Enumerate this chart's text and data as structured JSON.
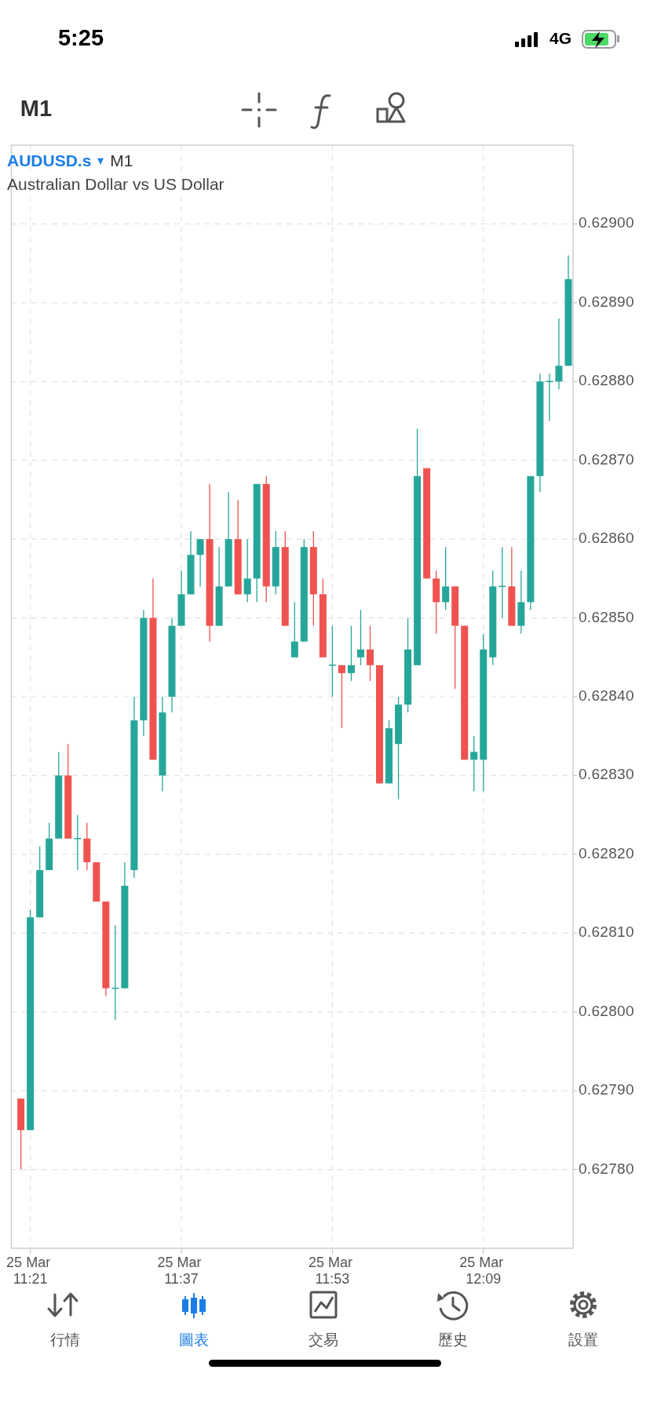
{
  "chart_data": {
    "type": "candlestick",
    "title": "AUDUSD.s",
    "subtitle": "Australian Dollar vs US Dollar",
    "annotations": [
      "5:25",
      "4G",
      "M1",
      "▾",
      "M1",
      "行情",
      "圖表",
      "交易",
      "歷史",
      "設置"
    ],
    "categories": [
      null,
      "25 Mar 11:21",
      null,
      null,
      null,
      null,
      null,
      null,
      null,
      null,
      null,
      null,
      null,
      null,
      null,
      null,
      null,
      "25 Mar 11:37",
      null,
      null,
      null,
      null,
      null,
      null,
      null,
      null,
      null,
      null,
      null,
      null,
      null,
      null,
      null,
      "25 Mar 11:53",
      null,
      null,
      null,
      null,
      null,
      null,
      null,
      null,
      null,
      null,
      null,
      null,
      null,
      null,
      null,
      "25 Mar 12:09",
      null,
      null,
      null,
      null,
      null,
      null,
      null,
      null,
      null
    ],
    "ohlc": [
      [
        0.62789,
        0.62789,
        0.6278,
        0.62785
      ],
      [
        0.62785,
        0.62813,
        0.62785,
        0.62812
      ],
      [
        0.62812,
        0.62821,
        0.62812,
        0.62818
      ],
      [
        0.62818,
        0.62824,
        0.62818,
        0.62822
      ],
      [
        0.62822,
        0.62833,
        0.62822,
        0.6283
      ],
      [
        0.6283,
        0.62834,
        0.62822,
        0.62822
      ],
      [
        0.62822,
        0.62825,
        0.62818,
        0.62822
      ],
      [
        0.62822,
        0.62824,
        0.62818,
        0.62819
      ],
      [
        0.62819,
        0.62819,
        0.62814,
        0.62814
      ],
      [
        0.62814,
        0.62814,
        0.62802,
        0.62803
      ],
      [
        0.62803,
        0.62811,
        0.62799,
        0.62803
      ],
      [
        0.62803,
        0.62819,
        0.62803,
        0.62816
      ],
      [
        0.62818,
        0.6284,
        0.62817,
        0.62837
      ],
      [
        0.62837,
        0.62851,
        0.62835,
        0.6285
      ],
      [
        0.6285,
        0.62855,
        0.62832,
        0.62832
      ],
      [
        0.6283,
        0.6284,
        0.62828,
        0.62838
      ],
      [
        0.6284,
        0.6285,
        0.62838,
        0.62849
      ],
      [
        0.62849,
        0.62856,
        0.62849,
        0.62853
      ],
      [
        0.62853,
        0.62861,
        0.62853,
        0.62858
      ],
      [
        0.62858,
        0.6286,
        0.62854,
        0.6286
      ],
      [
        0.6286,
        0.62867,
        0.62847,
        0.62849
      ],
      [
        0.62849,
        0.62859,
        0.62849,
        0.62854
      ],
      [
        0.62854,
        0.62866,
        0.62854,
        0.6286
      ],
      [
        0.6286,
        0.62865,
        0.62853,
        0.62853
      ],
      [
        0.62853,
        0.6286,
        0.62852,
        0.62855
      ],
      [
        0.62855,
        0.62867,
        0.62852,
        0.62867
      ],
      [
        0.62867,
        0.62868,
        0.62852,
        0.62854
      ],
      [
        0.62854,
        0.62861,
        0.62853,
        0.62859
      ],
      [
        0.62859,
        0.62861,
        0.62849,
        0.62849
      ],
      [
        0.62845,
        0.62852,
        0.62845,
        0.62847
      ],
      [
        0.62847,
        0.6286,
        0.62847,
        0.62859
      ],
      [
        0.62859,
        0.62861,
        0.62849,
        0.62853
      ],
      [
        0.62853,
        0.62855,
        0.62845,
        0.62845
      ],
      [
        0.62844,
        0.62849,
        0.6284,
        0.62844
      ],
      [
        0.62844,
        0.62844,
        0.62836,
        0.62843
      ],
      [
        0.62843,
        0.62849,
        0.62842,
        0.62844
      ],
      [
        0.62845,
        0.62851,
        0.62844,
        0.62846
      ],
      [
        0.62846,
        0.62849,
        0.62842,
        0.62844
      ],
      [
        0.62844,
        0.62844,
        0.62829,
        0.62829
      ],
      [
        0.62829,
        0.62837,
        0.62829,
        0.62836
      ],
      [
        0.62834,
        0.6284,
        0.62827,
        0.62839
      ],
      [
        0.62839,
        0.6285,
        0.62838,
        0.62846
      ],
      [
        0.62844,
        0.62874,
        0.62844,
        0.62868
      ],
      [
        0.62869,
        0.62869,
        0.62855,
        0.62855
      ],
      [
        0.62855,
        0.62856,
        0.62848,
        0.62852
      ],
      [
        0.62852,
        0.62859,
        0.62851,
        0.62854
      ],
      [
        0.62854,
        0.62854,
        0.62841,
        0.62849
      ],
      [
        0.62849,
        0.62849,
        0.62832,
        0.62832
      ],
      [
        0.62832,
        0.62835,
        0.62828,
        0.62833
      ],
      [
        0.62832,
        0.62848,
        0.62828,
        0.62846
      ],
      [
        0.62845,
        0.62856,
        0.62844,
        0.62854
      ],
      [
        0.62854,
        0.62859,
        0.6285,
        0.62854
      ],
      [
        0.62854,
        0.62859,
        0.62849,
        0.62849
      ],
      [
        0.62849,
        0.62856,
        0.62848,
        0.62852
      ],
      [
        0.62852,
        0.62868,
        0.62851,
        0.62868
      ],
      [
        0.62868,
        0.62881,
        0.62866,
        0.6288
      ],
      [
        0.6288,
        0.62881,
        0.62875,
        0.6288
      ],
      [
        0.6288,
        0.62888,
        0.62879,
        0.62882
      ],
      [
        0.62882,
        0.62896,
        0.62882,
        0.62893
      ]
    ],
    "colors": [
      "#ef5350",
      "#26a69a",
      "#26a69a",
      "#26a69a",
      "#26a69a",
      "#ef5350",
      "#26a69a",
      "#ef5350",
      "#ef5350",
      "#ef5350",
      "#26a69a",
      "#26a69a",
      "#26a69a",
      "#26a69a",
      "#ef5350",
      "#26a69a",
      "#26a69a",
      "#26a69a",
      "#26a69a",
      "#26a69a",
      "#ef5350",
      "#26a69a",
      "#26a69a",
      "#ef5350",
      "#26a69a",
      "#26a69a",
      "#ef5350",
      "#26a69a",
      "#ef5350",
      "#26a69a",
      "#26a69a",
      "#ef5350",
      "#ef5350",
      "#26a69a",
      "#ef5350",
      "#26a69a",
      "#26a69a",
      "#ef5350",
      "#ef5350",
      "#26a69a",
      "#26a69a",
      "#26a69a",
      "#26a69a",
      "#ef5350",
      "#ef5350",
      "#26a69a",
      "#ef5350",
      "#ef5350",
      "#26a69a",
      "#26a69a",
      "#26a69a",
      "#26a69a",
      "#ef5350",
      "#26a69a",
      "#26a69a",
      "#26a69a",
      "#26a69a",
      "#26a69a",
      "#26a69a"
    ],
    "ylim": [
      0.6277,
      0.6291
    ],
    "yticks": [
      {
        "value": 0.6278,
        "label": "0.62780"
      },
      {
        "value": 0.6279,
        "label": "0.62790"
      },
      {
        "value": 0.628,
        "label": "0.62800"
      },
      {
        "value": 0.6281,
        "label": "0.62810"
      },
      {
        "value": 0.6282,
        "label": "0.62820"
      },
      {
        "value": 0.6283,
        "label": "0.62830"
      },
      {
        "value": 0.6284,
        "label": "0.62840"
      },
      {
        "value": 0.6285,
        "label": "0.62850"
      },
      {
        "value": 0.6286,
        "label": "0.62860"
      },
      {
        "value": 0.6287,
        "label": "0.62870"
      },
      {
        "value": 0.6288,
        "label": "0.62880"
      },
      {
        "value": 0.6289,
        "label": "0.62890"
      },
      {
        "value": 0.629,
        "label": "0.62900"
      }
    ],
    "grid": true
  }
}
